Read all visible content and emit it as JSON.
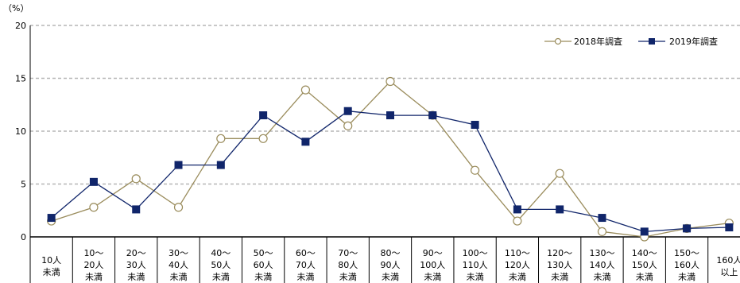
{
  "chart_data": {
    "type": "line",
    "unit_label": "（%）",
    "ylim": [
      0,
      20
    ],
    "yticks": [
      "0",
      "5",
      "10",
      "15",
      "20"
    ],
    "grid": true,
    "legend_position": "top-right",
    "categories": [
      [
        "10人",
        "未満"
      ],
      [
        "10～",
        "20人",
        "未満"
      ],
      [
        "20～",
        "30人",
        "未満"
      ],
      [
        "30～",
        "40人",
        "未満"
      ],
      [
        "40～",
        "50人",
        "未満"
      ],
      [
        "50～",
        "60人",
        "未満"
      ],
      [
        "60～",
        "70人",
        "未満"
      ],
      [
        "70～",
        "80人",
        "未満"
      ],
      [
        "80～",
        "90人",
        "未満"
      ],
      [
        "90～",
        "100人",
        "未満"
      ],
      [
        "100～",
        "110人",
        "未満"
      ],
      [
        "110～",
        "120人",
        "未満"
      ],
      [
        "120～",
        "130人",
        "未満"
      ],
      [
        "130～",
        "140人",
        "未満"
      ],
      [
        "140～",
        "150人",
        "未満"
      ],
      [
        "150～",
        "160人",
        "未満"
      ],
      [
        "160人",
        "以上"
      ]
    ],
    "series": [
      {
        "name": "2018年調査",
        "color": "#9a8c5c",
        "marker": "open-circle",
        "values": [
          1.5,
          2.8,
          5.5,
          2.8,
          9.3,
          9.3,
          13.9,
          10.5,
          14.7,
          11.5,
          6.3,
          1.5,
          6.0,
          0.5,
          0.0,
          0.8,
          1.3
        ]
      },
      {
        "name": "2019年調査",
        "color": "#10256a",
        "marker": "filled-square",
        "values": [
          1.8,
          5.2,
          2.6,
          6.8,
          6.8,
          11.5,
          9.0,
          11.9,
          11.5,
          11.5,
          10.6,
          2.6,
          2.6,
          1.8,
          0.5,
          0.8,
          0.9
        ]
      }
    ]
  }
}
